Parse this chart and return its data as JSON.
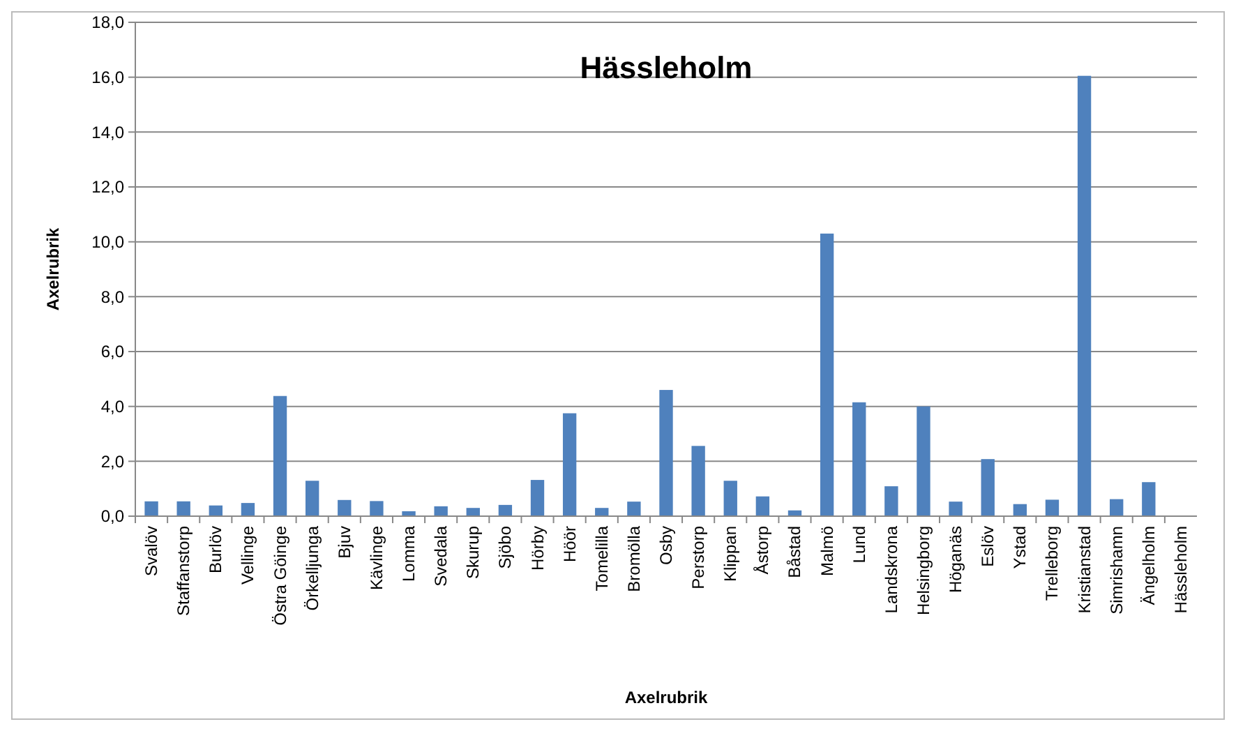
{
  "chart_data": {
    "type": "bar",
    "title": "Hässleholm",
    "xlabel": "Axelrubrik",
    "ylabel": "Axelrubrik",
    "categories": [
      "Svalöv",
      "Staffanstorp",
      "Burlöv",
      "Vellinge",
      "Östra Göinge",
      "Örkelljunga",
      "Bjuv",
      "Kävlinge",
      "Lomma",
      "Svedala",
      "Skurup",
      "Sjöbo",
      "Hörby",
      "Höör",
      "Tomelilla",
      "Bromölla",
      "Osby",
      "Perstorp",
      "Klippan",
      "Åstorp",
      "Båstad",
      "Malmö",
      "Lund",
      "Landskrona",
      "Helsingborg",
      "Höganäs",
      "Eslöv",
      "Ystad",
      "Trelleborg",
      "Kristianstad",
      "Simrishamn",
      "Ängelholm",
      "Hässleholm"
    ],
    "values": [
      0.54,
      0.54,
      0.39,
      0.48,
      4.38,
      1.29,
      0.59,
      0.55,
      0.18,
      0.36,
      0.3,
      0.41,
      1.32,
      3.75,
      0.3,
      0.53,
      4.6,
      2.56,
      1.29,
      0.72,
      0.21,
      10.3,
      4.15,
      1.09,
      4.0,
      0.53,
      2.08,
      0.44,
      0.6,
      16.05,
      0.62,
      1.24,
      0
    ],
    "color": "#4f81bd",
    "ylim": [
      0,
      18
    ],
    "yticks": [
      {
        "value": 0,
        "label": "0,0"
      },
      {
        "value": 2,
        "label": "2,0"
      },
      {
        "value": 4,
        "label": "4,0"
      },
      {
        "value": 6,
        "label": "6,0"
      },
      {
        "value": 8,
        "label": "8,0"
      },
      {
        "value": 10,
        "label": "10,0"
      },
      {
        "value": 12,
        "label": "12,0"
      },
      {
        "value": 14,
        "label": "14,0"
      },
      {
        "value": 16,
        "label": "16,0"
      },
      {
        "value": 18,
        "label": "18,0"
      }
    ],
    "grid": "y"
  }
}
